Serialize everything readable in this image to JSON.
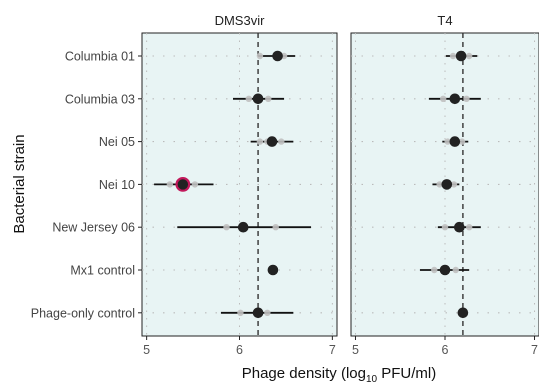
{
  "chart_data": {
    "type": "scatter",
    "xlabel": {
      "prefix": "Phage density (log",
      "sub": "10",
      "suffix": " PFU/ml)"
    },
    "ylabel": "Bacterial strain",
    "xlim": [
      4.95,
      7.05
    ],
    "xticks": [
      5,
      6,
      7
    ],
    "grid": "dotted",
    "categories": [
      "Columbia 01",
      "Columbia 03",
      "Nei 05",
      "Nei 10",
      "New Jersey 06",
      "Mx1 control",
      "Phage-only control"
    ],
    "colors": {
      "panel_bg": "#e8f4f4",
      "strip_bg": "#ffffff",
      "mean_point": "#222222",
      "replicate_point": "#c0c0c0",
      "highlight_outline": "#c2185b",
      "reference_line": "#333333"
    },
    "panels": [
      {
        "strip": "DMS3vir",
        "reference_line": 6.2,
        "points": [
          {
            "strain": "Columbia 01",
            "mean": 6.41,
            "low": 6.2,
            "high": 6.6,
            "replicates": [
              6.22,
              6.4,
              6.48
            ]
          },
          {
            "strain": "Columbia 03",
            "mean": 6.2,
            "low": 5.93,
            "high": 6.48,
            "replicates": [
              6.1,
              6.2,
              6.31
            ]
          },
          {
            "strain": "Nei 05",
            "mean": 6.35,
            "low": 6.12,
            "high": 6.58,
            "replicates": [
              6.22,
              6.3,
              6.45
            ]
          },
          {
            "strain": "Nei 10",
            "mean": 5.39,
            "low": 5.08,
            "high": 5.72,
            "replicates": [
              5.25,
              5.38,
              5.52
            ],
            "highlight": true
          },
          {
            "strain": "New Jersey 06",
            "mean": 6.04,
            "low": 5.33,
            "high": 6.77,
            "replicates": [
              5.86,
              6.04,
              6.39
            ]
          },
          {
            "strain": "Mx1 control",
            "mean": 6.36,
            "low": null,
            "high": null,
            "replicates": []
          },
          {
            "strain": "Phage-only control",
            "mean": 6.2,
            "low": 5.8,
            "high": 6.58,
            "replicates": [
              6.01,
              6.2,
              6.3
            ]
          }
        ]
      },
      {
        "strip": "T4",
        "reference_line": 6.2,
        "points": [
          {
            "strain": "Columbia 01",
            "mean": 6.18,
            "low": 6.01,
            "high": 6.36,
            "replicates": [
              6.09,
              6.18,
              6.27
            ]
          },
          {
            "strain": "Columbia 03",
            "mean": 6.11,
            "low": 5.82,
            "high": 6.4,
            "replicates": [
              5.98,
              6.11,
              6.24
            ]
          },
          {
            "strain": "Nei 05",
            "mean": 6.11,
            "low": 5.97,
            "high": 6.26,
            "replicates": [
              6.03,
              6.11,
              6.19
            ]
          },
          {
            "strain": "Nei 10",
            "mean": 6.02,
            "low": 5.86,
            "high": 6.16,
            "replicates": [
              5.94,
              6.02,
              6.1
            ]
          },
          {
            "strain": "New Jersey 06",
            "mean": 6.16,
            "low": 5.92,
            "high": 6.4,
            "replicates": [
              6.0,
              6.16,
              6.27
            ]
          },
          {
            "strain": "Mx1 control",
            "mean": 6.0,
            "low": 5.72,
            "high": 6.27,
            "replicates": [
              5.88,
              6.0,
              6.12
            ]
          },
          {
            "strain": "Phage-only control",
            "mean": 6.2,
            "low": null,
            "high": null,
            "replicates": []
          }
        ]
      }
    ]
  }
}
